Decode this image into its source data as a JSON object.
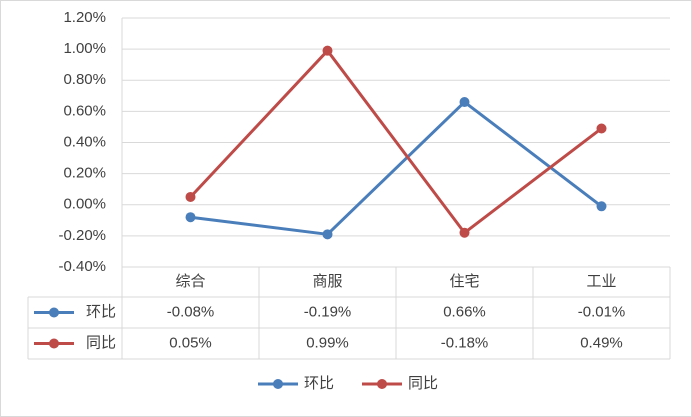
{
  "chart_data": {
    "type": "line",
    "categories": [
      "综合",
      "商服",
      "住宅",
      "工业"
    ],
    "series": [
      {
        "name": "环比",
        "color": "#4a7ebb",
        "values": [
          -0.08,
          -0.19,
          0.66,
          -0.01
        ],
        "value_labels": [
          "-0.08%",
          "-0.19%",
          "0.66%",
          "-0.01%"
        ]
      },
      {
        "name": "同比",
        "color": "#be4b48",
        "values": [
          0.05,
          0.99,
          -0.18,
          0.49
        ],
        "value_labels": [
          "0.05%",
          "0.99%",
          "-0.18%",
          "0.49%"
        ]
      }
    ],
    "ylim": [
      -0.4,
      1.2
    ],
    "yticks": [
      {
        "value": -0.4,
        "label": "-0.40%"
      },
      {
        "value": -0.2,
        "label": "-0.20%"
      },
      {
        "value": 0,
        "label": "0.00%"
      },
      {
        "value": 0.2,
        "label": "0.20%"
      },
      {
        "value": 0.4,
        "label": "0.40%"
      },
      {
        "value": 0.6,
        "label": "0.60%"
      },
      {
        "value": 0.8,
        "label": "0.80%"
      },
      {
        "value": 1.0,
        "label": "1.00%"
      },
      {
        "value": 1.2,
        "label": "1.20%"
      }
    ],
    "grid": true,
    "legend": "bottom"
  }
}
